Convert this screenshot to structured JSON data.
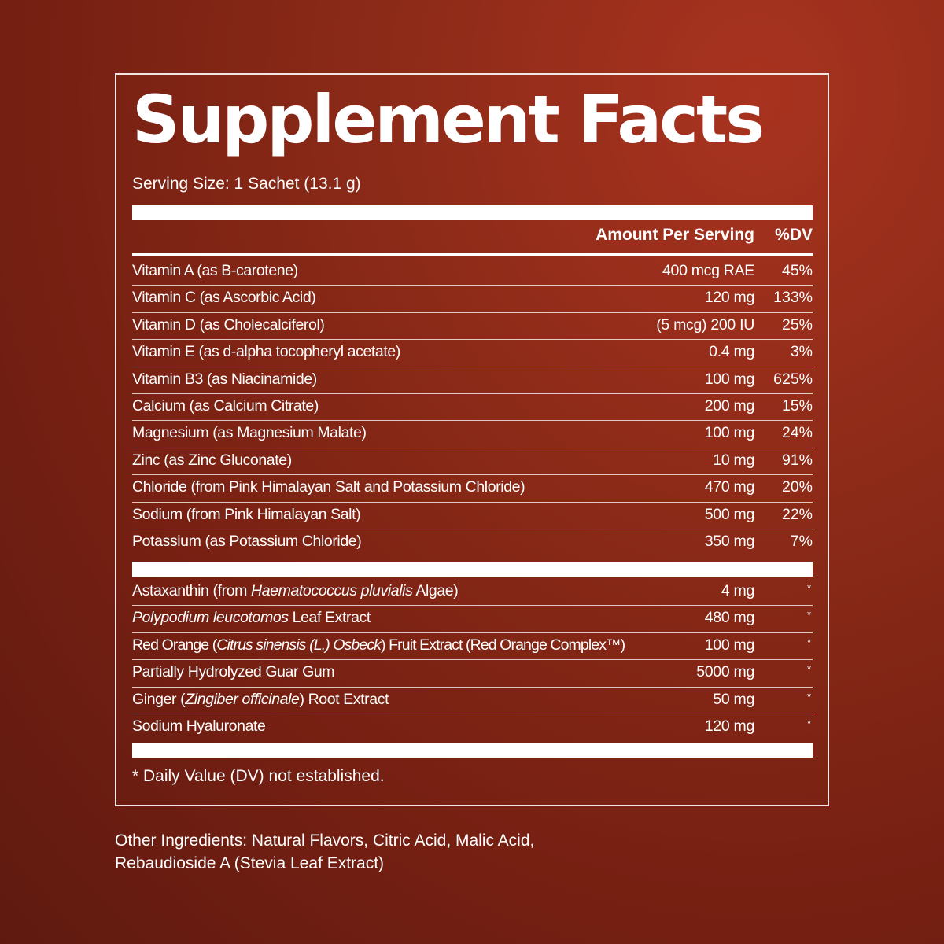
{
  "title": "Supplement Facts",
  "serving_size": "Serving Size: 1 Sachet (13.1 g)",
  "header": {
    "amount": "Amount Per Serving",
    "dv": "%DV"
  },
  "nutrients": [
    {
      "name": "Vitamin A (as B-carotene)",
      "amount": "400 mcg RAE",
      "dv": "45%"
    },
    {
      "name": "Vitamin C (as Ascorbic Acid)",
      "amount": "120 mg",
      "dv": "133%"
    },
    {
      "name": "Vitamin D (as Cholecalciferol)",
      "amount": "(5 mcg) 200 IU",
      "dv": "25%"
    },
    {
      "name": "Vitamin E (as d-alpha tocopheryl acetate)",
      "amount": "0.4 mg",
      "dv": "3%"
    },
    {
      "name": "Vitamin B3 (as Niacinamide)",
      "amount": "100 mg",
      "dv": "625%"
    },
    {
      "name": "Calcium (as Calcium Citrate)",
      "amount": "200 mg",
      "dv": "15%"
    },
    {
      "name": "Magnesium (as Magnesium Malate)",
      "amount": "100 mg",
      "dv": "24%"
    },
    {
      "name": "Zinc (as Zinc Gluconate)",
      "amount": "10 mg",
      "dv": "91%"
    },
    {
      "name": "Chloride (from Pink Himalayan Salt and Potassium Chloride)",
      "amount": "470 mg",
      "dv": "20%"
    },
    {
      "name": "Sodium (from Pink Himalayan Salt)",
      "amount": "500 mg",
      "dv": "22%"
    },
    {
      "name": "Potassium (as Potassium Chloride)",
      "amount": "350 mg",
      "dv": "7%"
    }
  ],
  "other_components": [
    {
      "name": "Astaxanthin (from Haematococcus pluvialis Algae)",
      "amount": "4 mg",
      "dv": "*"
    },
    {
      "name": "Polypodium leucotomos Leaf Extract",
      "amount": "480 mg",
      "dv": "*"
    },
    {
      "name": "Red Orange (Citrus sinensis (L.) Osbeck) Fruit Extract (Red Orange Complex™)",
      "amount": "100 mg",
      "dv": "*"
    },
    {
      "name": "Partially Hydrolyzed Guar Gum",
      "amount": "5000 mg",
      "dv": "*"
    },
    {
      "name": "Ginger (Zingiber officinale) Root Extract",
      "amount": "50 mg",
      "dv": "*"
    },
    {
      "name": "Sodium Hyaluronate",
      "amount": "120 mg",
      "dv": "*"
    }
  ],
  "footnote": "* Daily Value (DV) not established.",
  "other_ingredients": {
    "line1": "Other Ingredients: Natural Flavors, Citric Acid, Malic Acid,",
    "line2": "Rebaudioside A (Stevia Leaf Extract)"
  }
}
